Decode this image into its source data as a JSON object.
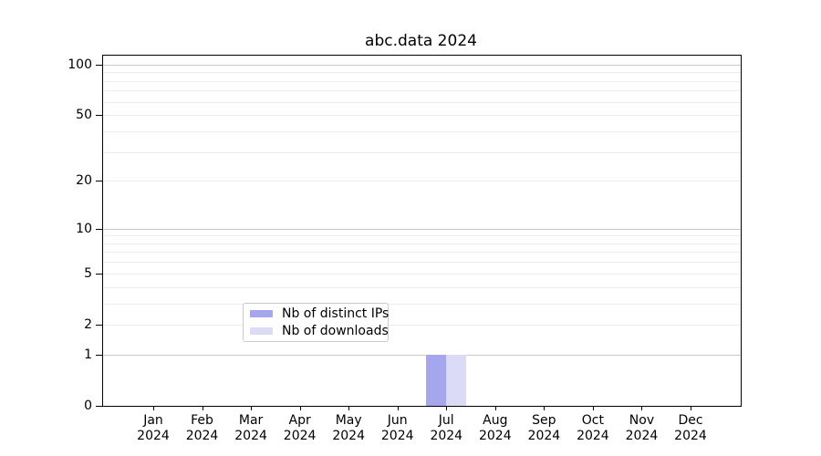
{
  "chart_data": {
    "type": "bar",
    "title": "abc.data 2024",
    "year": "2024",
    "categories": [
      "Jan",
      "Feb",
      "Mar",
      "Apr",
      "May",
      "Jun",
      "Jul",
      "Aug",
      "Sep",
      "Oct",
      "Nov",
      "Dec"
    ],
    "series": [
      {
        "name": "Nb of distinct IPs",
        "color": "#a6a6ec",
        "values": [
          0,
          0,
          0,
          0,
          0,
          0,
          1,
          0,
          0,
          0,
          0,
          0
        ]
      },
      {
        "name": "Nb of downloads",
        "color": "#dbdbf6",
        "values": [
          0,
          0,
          0,
          0,
          0,
          0,
          1,
          0,
          0,
          0,
          0,
          0
        ]
      }
    ],
    "xlabel": "",
    "ylabel": "",
    "yscale": "log1p",
    "ylim": [
      0,
      113
    ],
    "y_ticks": [
      100,
      50,
      20,
      10,
      5,
      2,
      1,
      0
    ],
    "y_power_gridlines": [
      1,
      10,
      100
    ],
    "y_other_gridlines": [
      2,
      3,
      4,
      5,
      6,
      7,
      8,
      9,
      20,
      30,
      40,
      50,
      60,
      70,
      80,
      90
    ],
    "grid": "horizontal",
    "legend_position": "bottom-center",
    "colors": {
      "axis": "#000000",
      "grid_power": "#c9c9c9",
      "grid_faint": "#ececec",
      "legend_border": "#cccccc"
    }
  }
}
